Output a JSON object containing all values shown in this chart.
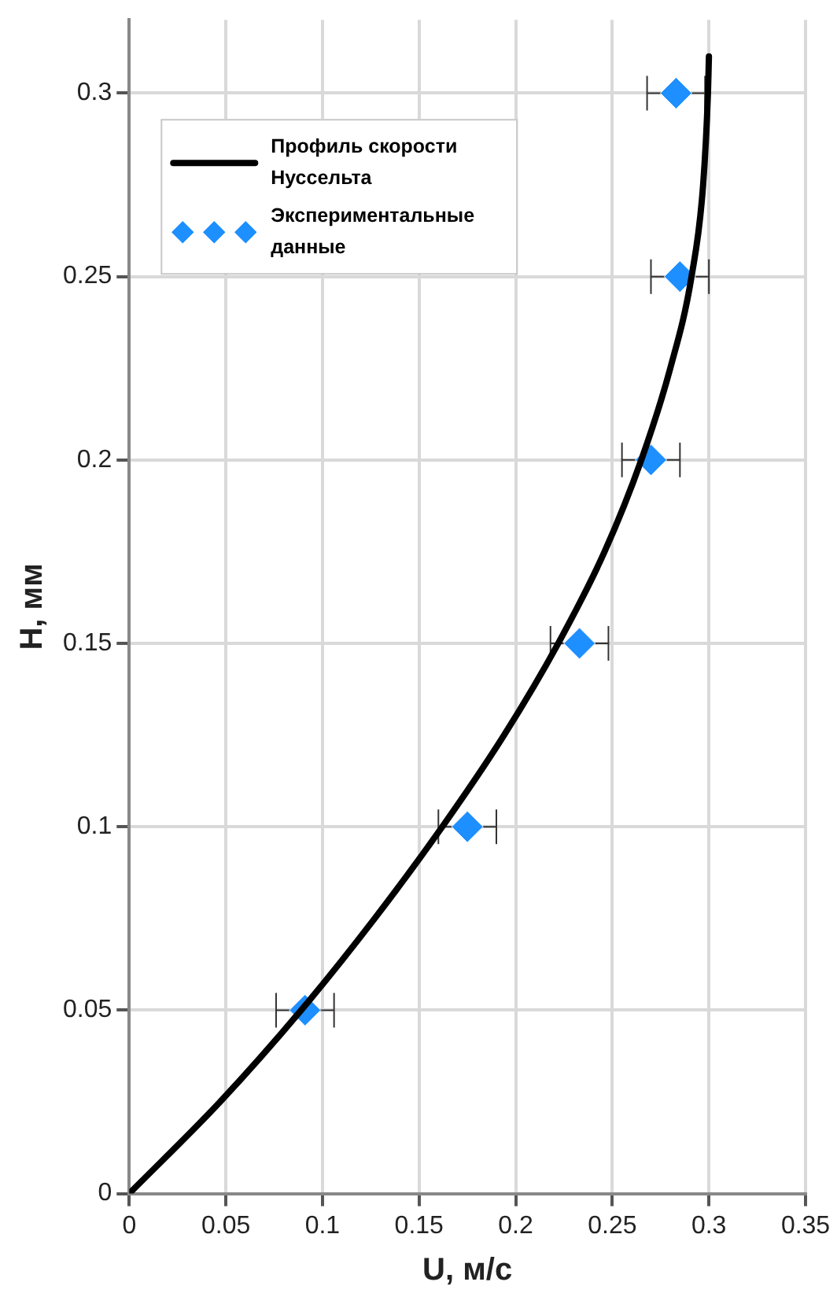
{
  "chart_data": {
    "type": "scatter",
    "xlabel": "U, м/с",
    "ylabel": "H, мм",
    "xlim": [
      0,
      0.35
    ],
    "xticks": [
      0,
      0.05,
      0.1,
      0.15,
      0.2,
      0.25,
      0.3,
      0.35
    ],
    "ylim": [
      0,
      0.32
    ],
    "yticks": [
      0,
      0.05,
      0.1,
      0.15,
      0.2,
      0.25,
      0.3
    ],
    "grid": true,
    "legend": "top left",
    "series": [
      {
        "name": "Профиль скорости Нуссельта",
        "type": "line",
        "color": "#000000",
        "marker": "none",
        "line_style": "solid",
        "x": [
          0,
          0.047,
          0.089,
          0.127,
          0.162,
          0.194,
          0.222,
          0.246,
          0.265,
          0.28,
          0.291,
          0.297,
          0.2995,
          0.3
        ],
        "values": [
          0,
          0.025,
          0.05,
          0.075,
          0.1,
          0.125,
          0.15,
          0.175,
          0.2,
          0.225,
          0.25,
          0.275,
          0.3,
          0.31
        ]
      },
      {
        "name": "Экспериментальные данные",
        "type": "scatter",
        "color": "#1e8fff",
        "marker": "diamond",
        "x": [
          0.091,
          0.175,
          0.233,
          0.27,
          0.285,
          0.283
        ],
        "values": [
          0.05,
          0.1,
          0.15,
          0.2,
          0.25,
          0.3
        ],
        "xerrors": [
          0.015,
          0.015,
          0.015,
          0.015,
          0.015,
          0.015
        ]
      }
    ]
  }
}
